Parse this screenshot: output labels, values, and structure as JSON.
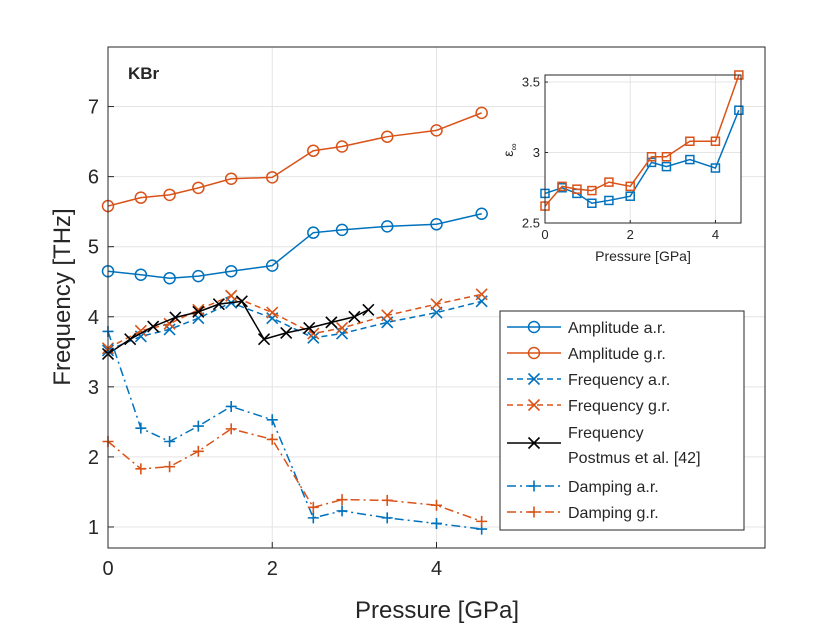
{
  "chart_data": [
    {
      "type": "line",
      "annotation": "KBr",
      "xlabel": "Pressure [GPa]",
      "ylabel": "Frequency [THz]",
      "xlim": [
        0,
        8
      ],
      "ylim": [
        0.7,
        7.85
      ],
      "xticks": [
        0,
        2,
        4
      ],
      "yticks": [
        1,
        2,
        3,
        4,
        5,
        6,
        7
      ],
      "grid": true,
      "legend_position": "bottom-right",
      "series": [
        {
          "name": "Amplitude a.r.",
          "color": "#0072BD",
          "dash": "solid",
          "marker": "circle",
          "x": [
            0,
            0.4,
            0.75,
            1.1,
            1.5,
            2.0,
            2.5,
            2.85,
            3.4,
            4.0,
            4.55
          ],
          "y": [
            4.65,
            4.6,
            4.55,
            4.58,
            4.65,
            4.73,
            5.2,
            5.24,
            5.29,
            5.32,
            5.47
          ]
        },
        {
          "name": "Amplitude g.r.",
          "color": "#D95319",
          "dash": "solid",
          "marker": "circle",
          "x": [
            0,
            0.4,
            0.75,
            1.1,
            1.5,
            2.0,
            2.5,
            2.85,
            3.4,
            4.0,
            4.55
          ],
          "y": [
            5.58,
            5.7,
            5.74,
            5.84,
            5.97,
            5.99,
            6.37,
            6.43,
            6.57,
            6.66,
            6.91
          ]
        },
        {
          "name": "Frequency a.r.",
          "color": "#0072BD",
          "dash": "dashed",
          "marker": "x",
          "x": [
            0,
            0.4,
            0.75,
            1.1,
            1.5,
            2.0,
            2.5,
            2.85,
            3.4,
            4.0,
            4.55
          ],
          "y": [
            3.52,
            3.72,
            3.82,
            3.98,
            4.2,
            3.98,
            3.7,
            3.76,
            3.92,
            4.06,
            4.22
          ]
        },
        {
          "name": "Frequency g.r.",
          "color": "#D95319",
          "dash": "dashed",
          "marker": "x",
          "x": [
            0,
            0.4,
            0.75,
            1.1,
            1.5,
            2.0,
            2.5,
            2.85,
            3.4,
            4.0,
            4.55
          ],
          "y": [
            3.55,
            3.8,
            3.9,
            4.1,
            4.3,
            4.06,
            3.76,
            3.84,
            4.02,
            4.18,
            4.32
          ]
        },
        {
          "name": "Frequency Postmus et al. [42]",
          "legend_lines": [
            "Frequency",
            "Postmus et al. [42]"
          ],
          "color": "#000000",
          "dash": "solid",
          "marker": "x",
          "x": [
            0,
            0.27,
            0.55,
            0.82,
            1.1,
            1.35,
            1.63,
            1.9,
            2.17,
            2.45,
            2.72,
            3.0,
            3.17
          ],
          "y": [
            3.47,
            3.68,
            3.86,
            3.99,
            4.07,
            4.18,
            4.22,
            3.68,
            3.77,
            3.84,
            3.92,
            4.0,
            4.1
          ]
        },
        {
          "name": "Damping a.r.",
          "color": "#0072BD",
          "dash": "dashdot",
          "marker": "plus",
          "x": [
            0,
            0.4,
            0.75,
            1.1,
            1.5,
            2.0,
            2.5,
            2.85,
            3.4,
            4.0,
            4.55
          ],
          "y": [
            3.79,
            2.41,
            2.22,
            2.44,
            2.72,
            2.53,
            1.13,
            1.23,
            1.13,
            1.05,
            0.97
          ]
        },
        {
          "name": "Damping g.r.",
          "color": "#D95319",
          "dash": "dashdot",
          "marker": "plus",
          "x": [
            0,
            0.4,
            0.75,
            1.1,
            1.5,
            2.0,
            2.5,
            2.85,
            3.4,
            4.0,
            4.55
          ],
          "y": [
            2.22,
            1.83,
            1.86,
            2.08,
            2.4,
            2.25,
            1.28,
            1.39,
            1.38,
            1.31,
            1.08
          ]
        }
      ]
    },
    {
      "type": "line",
      "title": "",
      "xlabel": "Pressure [GPa]",
      "ylabel": "ε∞",
      "ylabel_main": "ε",
      "ylabel_sub": "∞",
      "xlim": [
        0,
        4.6
      ],
      "ylim": [
        2.5,
        3.55
      ],
      "xticks": [
        0,
        2,
        4
      ],
      "yticks": [
        2.5,
        3,
        3.5
      ],
      "grid": true,
      "series": [
        {
          "name": "a.r.",
          "color": "#0072BD",
          "dash": "solid",
          "marker": "square",
          "x": [
            0,
            0.4,
            0.75,
            1.1,
            1.5,
            2.0,
            2.5,
            2.85,
            3.4,
            4.0,
            4.55
          ],
          "y": [
            2.71,
            2.75,
            2.71,
            2.64,
            2.66,
            2.69,
            2.93,
            2.9,
            2.95,
            2.89,
            3.3
          ]
        },
        {
          "name": "g.r.",
          "color": "#D95319",
          "dash": "solid",
          "marker": "square",
          "x": [
            0,
            0.4,
            0.75,
            1.1,
            1.5,
            2.0,
            2.5,
            2.85,
            3.4,
            4.0,
            4.55
          ],
          "y": [
            2.62,
            2.76,
            2.74,
            2.73,
            2.79,
            2.76,
            2.97,
            2.97,
            3.08,
            3.08,
            3.55
          ]
        }
      ]
    }
  ]
}
